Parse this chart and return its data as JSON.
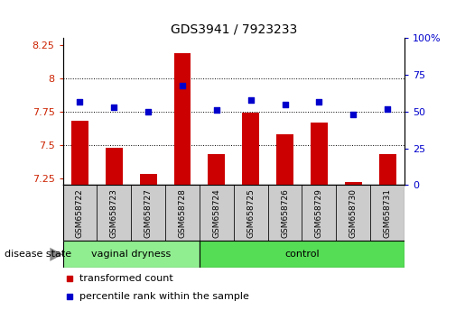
{
  "title": "GDS3941 / 7923233",
  "samples": [
    "GSM658722",
    "GSM658723",
    "GSM658727",
    "GSM658728",
    "GSM658724",
    "GSM658725",
    "GSM658726",
    "GSM658729",
    "GSM658730",
    "GSM658731"
  ],
  "red_values": [
    7.68,
    7.48,
    7.28,
    8.19,
    7.43,
    7.74,
    7.58,
    7.67,
    7.22,
    7.43
  ],
  "blue_values": [
    57,
    53,
    50,
    68,
    51,
    58,
    55,
    57,
    48,
    52
  ],
  "groups": [
    {
      "label": "vaginal dryness",
      "start": 0,
      "end": 4,
      "color": "#90EE90"
    },
    {
      "label": "control",
      "start": 4,
      "end": 10,
      "color": "#55DD55"
    }
  ],
  "ylim_left": [
    7.2,
    8.3
  ],
  "ylim_right": [
    0,
    100
  ],
  "yticks_left": [
    7.25,
    7.5,
    7.75,
    8.0,
    8.25
  ],
  "ytick_labels_left": [
    "7.25",
    "7.5",
    "7.75",
    "8",
    "8.25"
  ],
  "yticks_right": [
    0,
    25,
    50,
    75,
    100
  ],
  "ytick_labels_right": [
    "0",
    "25",
    "50",
    "75",
    "100%"
  ],
  "hlines": [
    7.5,
    7.75,
    8.0
  ],
  "bar_color": "#CC0000",
  "dot_color": "#0000CC",
  "bar_bottom": 7.2,
  "legend_red": "transformed count",
  "legend_blue": "percentile rank within the sample",
  "disease_state_label": "disease state",
  "background_color": "#FFFFFF",
  "plot_bg": "#FFFFFF",
  "tick_label_color_left": "#CC2200",
  "tick_label_color_right": "#0000CC",
  "sample_box_color": "#CCCCCC",
  "group_border_color": "#000000"
}
